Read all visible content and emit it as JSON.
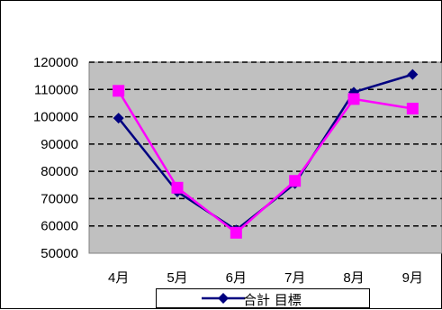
{
  "chart_data": {
    "type": "line",
    "categories": [
      "4月",
      "5月",
      "6月",
      "7月",
      "8月",
      "9月"
    ],
    "series": [
      {
        "name": "合計",
        "values": [
          99500,
          72500,
          58500,
          75500,
          109000,
          115500
        ],
        "color": "#000080",
        "marker": "diamond"
      },
      {
        "name": "目標",
        "values": [
          109500,
          74000,
          57500,
          76500,
          106500,
          103000
        ],
        "color": "#ff00ff",
        "marker": "square"
      }
    ],
    "y_ticks": [
      "50000",
      "60000",
      "70000",
      "80000",
      "90000",
      "100000",
      "110000",
      "120000"
    ],
    "ylim": [
      50000,
      120000
    ],
    "grid": true,
    "plot_background": "#c0c0c0",
    "legend_position": "bottom",
    "legend_text": "合計 目標",
    "title": "",
    "xlabel": "",
    "ylabel": ""
  }
}
